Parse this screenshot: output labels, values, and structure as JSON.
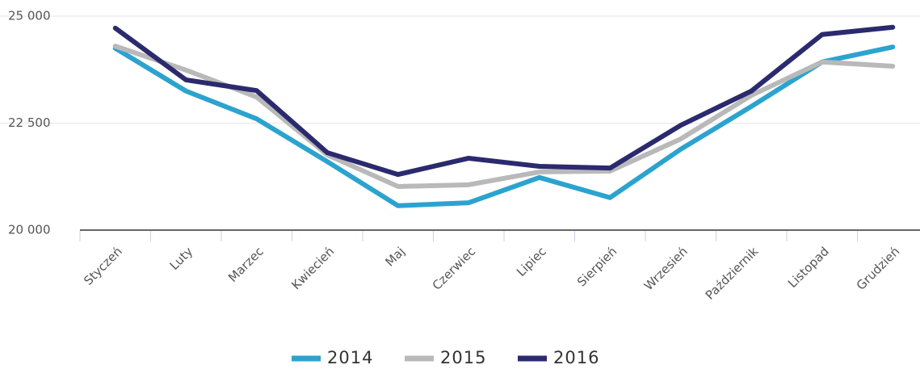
{
  "chart_data": {
    "type": "line",
    "categories": [
      "Styczeń",
      "Luty",
      "Marzec",
      "Kwiecień",
      "Maj",
      "Czerwiec",
      "Lipiec",
      "Sierpień",
      "Wrzesień",
      "Październik",
      "Listopad",
      "Grudzień"
    ],
    "series": [
      {
        "name": "2014",
        "color": "#2ca3cf",
        "values": [
          24250,
          23250,
          22600,
          21600,
          20570,
          20640,
          21230,
          20760,
          21890,
          22890,
          23930,
          24280
        ]
      },
      {
        "name": "2015",
        "color": "#b9b9b9",
        "values": [
          24300,
          23740,
          23110,
          21760,
          21020,
          21060,
          21360,
          21380,
          22130,
          23150,
          23930,
          23830
        ]
      },
      {
        "name": "2016",
        "color": "#2b2a6e",
        "values": [
          24720,
          23510,
          23260,
          21810,
          21300,
          21680,
          21490,
          21450,
          22450,
          23250,
          24570,
          24740
        ]
      }
    ],
    "ylim": [
      20000,
      25000
    ],
    "yticks": [
      {
        "value": 20000,
        "label": "20 000"
      },
      {
        "value": 22500,
        "label": "22 500"
      },
      {
        "value": 25000,
        "label": "25 000"
      }
    ],
    "grid": true
  }
}
